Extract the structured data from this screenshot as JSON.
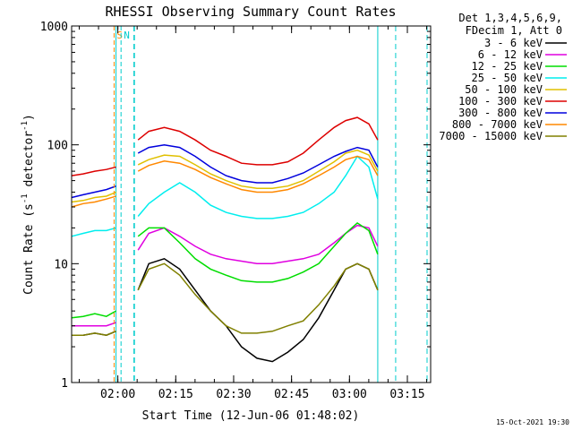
{
  "chart_data": {
    "type": "line",
    "title": "RHESSI Observing Summary Count Rates",
    "xlabel": "Start Time (12-Jun-06 01:48:02)",
    "ylabel_main": "Count Rate (s",
    "ylabel_sup1": "-1",
    "ylabel_mid": " detector",
    "ylabel_sup2": "-1",
    "ylabel_end": ")",
    "yscale": "log",
    "ylim": [
      1,
      1000
    ],
    "xlim_minutes": [
      0,
      93
    ],
    "x_ticks": [
      {
        "label": "02:00",
        "minute": 11.97
      },
      {
        "label": "02:15",
        "minute": 26.97
      },
      {
        "label": "02:30",
        "minute": 41.97
      },
      {
        "label": "02:45",
        "minute": 56.97
      },
      {
        "label": "03:00",
        "minute": 71.97
      },
      {
        "label": "03:15",
        "minute": 86.97
      }
    ],
    "y_ticks": [
      {
        "label": "1",
        "value": 1
      },
      {
        "label": "10",
        "value": 10
      },
      {
        "label": "100",
        "value": 100
      },
      {
        "label": "1000",
        "value": 1000
      }
    ],
    "legend_header": [
      "Det 1,3,4,5,6,9,",
      "FDecim 1, Att 0"
    ],
    "legend_placement": "right",
    "gaps_minutes": [
      [
        11.5,
        17.2
      ],
      [
        79.3,
        93
      ]
    ],
    "series": [
      {
        "name": "3 - 6 keV",
        "color": "#000000",
        "x": [
          0,
          3,
          6,
          9,
          11.5,
          17.2,
          20,
          24,
          28,
          32,
          36,
          40,
          44,
          48,
          52,
          56,
          60,
          64,
          68,
          71,
          74,
          77,
          79.3
        ],
        "y": [
          2.5,
          2.5,
          2.6,
          2.5,
          2.7,
          6,
          10,
          11,
          9,
          6,
          4,
          3,
          2,
          1.6,
          1.5,
          1.8,
          2.3,
          3.5,
          6,
          9,
          10,
          9,
          6
        ]
      },
      {
        "name": "6 - 12 keV",
        "color": "#e000e0",
        "x": [
          0,
          3,
          6,
          9,
          11.5,
          17.2,
          20,
          24,
          28,
          32,
          36,
          40,
          44,
          48,
          52,
          56,
          60,
          64,
          68,
          71,
          74,
          77,
          79.3
        ],
        "y": [
          3,
          3,
          3,
          3,
          3.2,
          13,
          18,
          20,
          17,
          14,
          12,
          11,
          10.5,
          10,
          10,
          10.5,
          11,
          12,
          15,
          18,
          21,
          20,
          14
        ]
      },
      {
        "name": "12 - 25 keV",
        "color": "#00dd00",
        "x": [
          0,
          3,
          6,
          9,
          11.5,
          17.2,
          20,
          24,
          28,
          32,
          36,
          40,
          44,
          48,
          52,
          56,
          60,
          64,
          68,
          71,
          74,
          77,
          79.3
        ],
        "y": [
          3.5,
          3.6,
          3.8,
          3.6,
          4,
          17,
          20,
          20,
          15,
          11,
          9,
          8,
          7.2,
          7,
          7,
          7.5,
          8.5,
          10,
          14,
          18,
          22,
          19,
          12
        ]
      },
      {
        "name": "25 - 50 keV",
        "color": "#00eeee",
        "x": [
          0,
          3,
          6,
          9,
          11.5,
          17.2,
          20,
          24,
          28,
          32,
          36,
          40,
          44,
          48,
          52,
          56,
          60,
          64,
          68,
          71,
          74,
          77,
          79.3
        ],
        "y": [
          17,
          18,
          19,
          19,
          20,
          25,
          32,
          40,
          48,
          40,
          31,
          27,
          25,
          24,
          24,
          25,
          27,
          32,
          40,
          55,
          80,
          65,
          35
        ]
      },
      {
        "name": "50 - 100 keV",
        "color": "#e0c000",
        "x": [
          0,
          3,
          6,
          9,
          11.5,
          17.2,
          20,
          24,
          28,
          32,
          36,
          40,
          44,
          48,
          52,
          56,
          60,
          64,
          68,
          71,
          74,
          77,
          79.3
        ],
        "y": [
          33,
          34,
          36,
          37,
          40,
          68,
          75,
          82,
          80,
          68,
          57,
          50,
          45,
          43,
          43,
          45,
          50,
          60,
          72,
          85,
          90,
          82,
          60
        ]
      },
      {
        "name": "100 - 300 keV",
        "color": "#dd0000",
        "x": [
          0,
          3,
          6,
          9,
          11.5,
          17.2,
          20,
          24,
          28,
          32,
          36,
          40,
          44,
          48,
          52,
          56,
          60,
          64,
          68,
          71,
          74,
          77,
          79.3
        ],
        "y": [
          55,
          57,
          60,
          62,
          65,
          110,
          130,
          140,
          130,
          110,
          90,
          80,
          70,
          68,
          68,
          72,
          85,
          110,
          140,
          160,
          170,
          150,
          110
        ]
      },
      {
        "name": "300 - 800 keV",
        "color": "#0000dd",
        "x": [
          0,
          3,
          6,
          9,
          11.5,
          17.2,
          20,
          24,
          28,
          32,
          36,
          40,
          44,
          48,
          52,
          56,
          60,
          64,
          68,
          71,
          74,
          77,
          79.3
        ],
        "y": [
          36,
          38,
          40,
          42,
          45,
          85,
          95,
          100,
          95,
          80,
          65,
          55,
          50,
          48,
          48,
          52,
          58,
          68,
          80,
          88,
          95,
          90,
          65
        ]
      },
      {
        "name": "800 - 7000 keV",
        "color": "#ff8800",
        "x": [
          0,
          3,
          6,
          9,
          11.5,
          17.2,
          20,
          24,
          28,
          32,
          36,
          40,
          44,
          48,
          52,
          56,
          60,
          64,
          68,
          71,
          74,
          77,
          79.3
        ],
        "y": [
          30,
          32,
          33,
          35,
          37,
          60,
          67,
          73,
          70,
          62,
          53,
          47,
          42,
          40,
          40,
          42,
          47,
          55,
          65,
          75,
          80,
          75,
          55
        ]
      },
      {
        "name": "7000 - 15000 keV",
        "color": "#808000",
        "x": [
          0,
          3,
          6,
          9,
          11.5,
          17.2,
          20,
          24,
          28,
          32,
          36,
          40,
          44,
          48,
          52,
          56,
          60,
          64,
          68,
          71,
          74,
          77,
          79.3
        ],
        "y": [
          2.5,
          2.5,
          2.6,
          2.5,
          2.7,
          6,
          9,
          10,
          8,
          5.5,
          4,
          3,
          2.6,
          2.6,
          2.7,
          3,
          3.3,
          4.5,
          6.5,
          9,
          10,
          9,
          6
        ]
      }
    ],
    "annotations": [
      {
        "text": "S",
        "color": "#ff8800",
        "minute": 11.0
      },
      {
        "text": "N",
        "color": "#00cccc",
        "minute": 12.8
      }
    ],
    "timestamp": "15-Oct-2021 19:30"
  }
}
